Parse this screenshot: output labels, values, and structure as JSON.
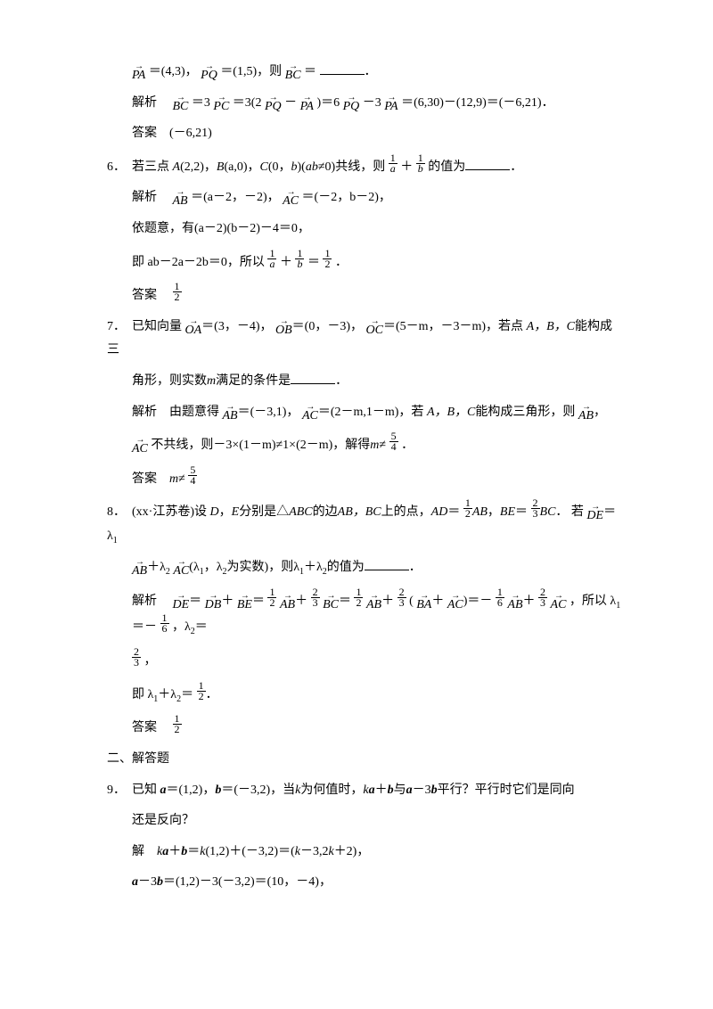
{
  "blocks": {
    "b1": {
      "line1_pre": "＝(4,3)，",
      "line1_mid": "＝(1,5)，则",
      "line1_post": "＝",
      "PA": "PA",
      "PQ": "PQ",
      "BC": "BC",
      "line2_pre": "解析　",
      "line2_a": "＝3",
      "line2_b": "＝3(2",
      "line2_c": "－",
      "line2_d": ")＝6",
      "line2_e": "－3",
      "line2_f": "＝(6,30)－(12,9)＝(－6,21)．",
      "PC": "PC",
      "ans": "答案　(－6,21)"
    },
    "q6": {
      "num": "6．",
      "text_a": "若三点",
      "A": "A",
      "B": "B",
      "C": "C",
      "text_b": "(2,2)，",
      "text_c": "(a,0)，",
      "text_d": "(0，",
      "text_e": ")(",
      "text_f": "≠0)共线，则",
      "text_g": "的值为",
      "ab": "ab",
      "b": "b",
      "frac1n": "1",
      "frac1d": "a",
      "frac2n": "1",
      "frac2d": "b",
      "plus": "＋",
      "sol_label": "解析　",
      "AB": "AB",
      "AC": "AC",
      "sol1_a": "＝(a－2，－2)，",
      "sol1_b": "＝(－2，b－2)，",
      "sol2": "依题意，有(a－2)(b－2)－4＝0，",
      "sol3_a": "即 ab－2a－2b＝0，所以",
      "sol3_b": "＝",
      "sol3_c": "．",
      "half_n": "1",
      "half_d": "2",
      "ans_label": "答案　"
    },
    "q7": {
      "num": "7．",
      "text_a": "已知向量",
      "OA": "OA",
      "OB": "OB",
      "OC": "OC",
      "text_b": "＝(3，－4)，",
      "text_c": "＝(0，－3)，",
      "text_d": "＝(5－m，－3－m)，若点",
      "text_e": "A，B，C",
      "text_f": "能构成三",
      "text_g": "角形，则实数",
      "m": "m",
      "text_h": "满足的条件是",
      "sol_label": "解析　由题意得",
      "AB": "AB",
      "AC": "AC",
      "sol1_a": "＝(－3,1)，",
      "sol1_b": "＝(2－m,1－m)，若",
      "sol1_c": "A，B，C",
      "sol1_d": "能构成三角形，则",
      "sol1_e": "，",
      "sol2_a": "不共线，则－3×(1－m)≠1×(2－m)，解得",
      "sol2_b": "≠",
      "sol2_c": "．",
      "f54n": "5",
      "f54d": "4",
      "ans_label": "答案　",
      "ans_a": "≠"
    },
    "q8": {
      "num": "8．",
      "text_a": "(xx·江苏卷)设",
      "D": "D",
      "E": "E",
      "text_b": "，",
      "text_c": "分别是△",
      "ABC": "ABC",
      "text_d": "的边",
      "text_e": "AB，BC",
      "text_f": "上的点，",
      "AD": "AD",
      "text_g": "＝",
      "half_n": "1",
      "half_d": "2",
      "AB_t": "AB",
      "comma": "，",
      "BE": "BE",
      "twothird_n": "2",
      "twothird_d": "3",
      "BC_t": "BC",
      "period": "．",
      "text_h": "若",
      "DE": "DE",
      "text_i": "＝λ",
      "sub1": "1",
      "AB_v": "AB",
      "text_j": "＋λ",
      "sub2": "2",
      "AC_v": "AC",
      "text_k": "(λ",
      "text_l": "，λ",
      "text_m": "为实数)，则λ",
      "text_n": "＋λ",
      "text_o": "的值为",
      "sol_label": "解析　",
      "DB": "DB",
      "BA": "BA",
      "sol_eq1": "＝",
      "sol_eq_plus": "＋",
      "sol_eq_open": "(",
      "sol_eq_close": ")＝－",
      "neg16n": "1",
      "neg16d": "6",
      "sol_tail": "，所以 λ",
      "sol_tail2": "＝－",
      "sol_tail3": "，λ",
      "sol_tail4": "＝",
      "twothird2_n": "2",
      "twothird2_d": "3",
      "sol_comma": "，",
      "sol3_a": "即 λ",
      "sol3_b": "＋λ",
      "sol3_c": "＝",
      "ans_label": "答案　"
    },
    "section2": "二、解答题",
    "q9": {
      "num": "9．",
      "text_a": "已知",
      "a": "a",
      "b": "b",
      "k": "k",
      "text_b": "＝(1,2)，",
      "text_c": "＝(－3,2)，当",
      "text_d": "为何值时，",
      "text_e": "＋",
      "text_f": "与",
      "text_g": "－3",
      "text_h": "平行？平行时它们是同向",
      "text_i": "还是反向？",
      "sol_label": "解　",
      "sol1_a": "＝",
      "sol1_b": "(1,2)＋(－3,2)＝(",
      "sol1_c": "－3,2",
      "sol1_d": "＋2)，",
      "sol2_a": "－3",
      "sol2_b": "＝(1,2)－3(－3,2)＝(10，－4)，"
    }
  }
}
